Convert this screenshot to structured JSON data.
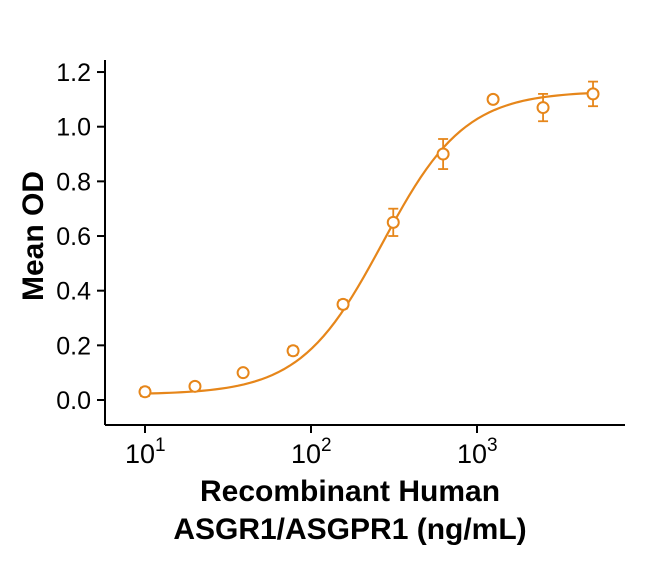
{
  "chart_data": {
    "type": "scatter",
    "title": "",
    "ylabel": "Mean OD",
    "xlabel_line1": "Recombinant Human",
    "xlabel_line2": "ASGR1/ASGPR1 (ng/mL)",
    "x_scale": "log10",
    "xlim": [
      8,
      7000
    ],
    "ylim": [
      0.0,
      1.2
    ],
    "grid": false,
    "legend": "none",
    "accent_color": "#E6861A",
    "axis_color": "#000000",
    "y_ticks": [
      0.0,
      0.2,
      0.4,
      0.6,
      0.8,
      1.0,
      1.2
    ],
    "x_ticks": [
      {
        "value": 10,
        "base": "10",
        "exponent": "1"
      },
      {
        "value": 100,
        "base": "10",
        "exponent": "2"
      },
      {
        "value": 1000,
        "base": "10",
        "exponent": "3"
      }
    ],
    "series": [
      {
        "name": "Mean OD",
        "marker": "open-circle",
        "points": [
          {
            "x": 10,
            "y": 0.03,
            "err": 0.015
          },
          {
            "x": 20,
            "y": 0.05,
            "err": 0.012
          },
          {
            "x": 39,
            "y": 0.1,
            "err": 0
          },
          {
            "x": 78,
            "y": 0.18,
            "err": 0.015
          },
          {
            "x": 156,
            "y": 0.35,
            "err": 0.015
          },
          {
            "x": 313,
            "y": 0.65,
            "err": 0.05
          },
          {
            "x": 625,
            "y": 0.9,
            "err": 0.055
          },
          {
            "x": 1250,
            "y": 1.1,
            "err": 0
          },
          {
            "x": 2500,
            "y": 1.07,
            "err": 0.05
          },
          {
            "x": 5000,
            "y": 1.12,
            "err": 0.045
          }
        ]
      }
    ],
    "fit": {
      "model": "4PL",
      "a": 0.02,
      "b": 1.75,
      "c": 270,
      "d": 1.13
    }
  }
}
